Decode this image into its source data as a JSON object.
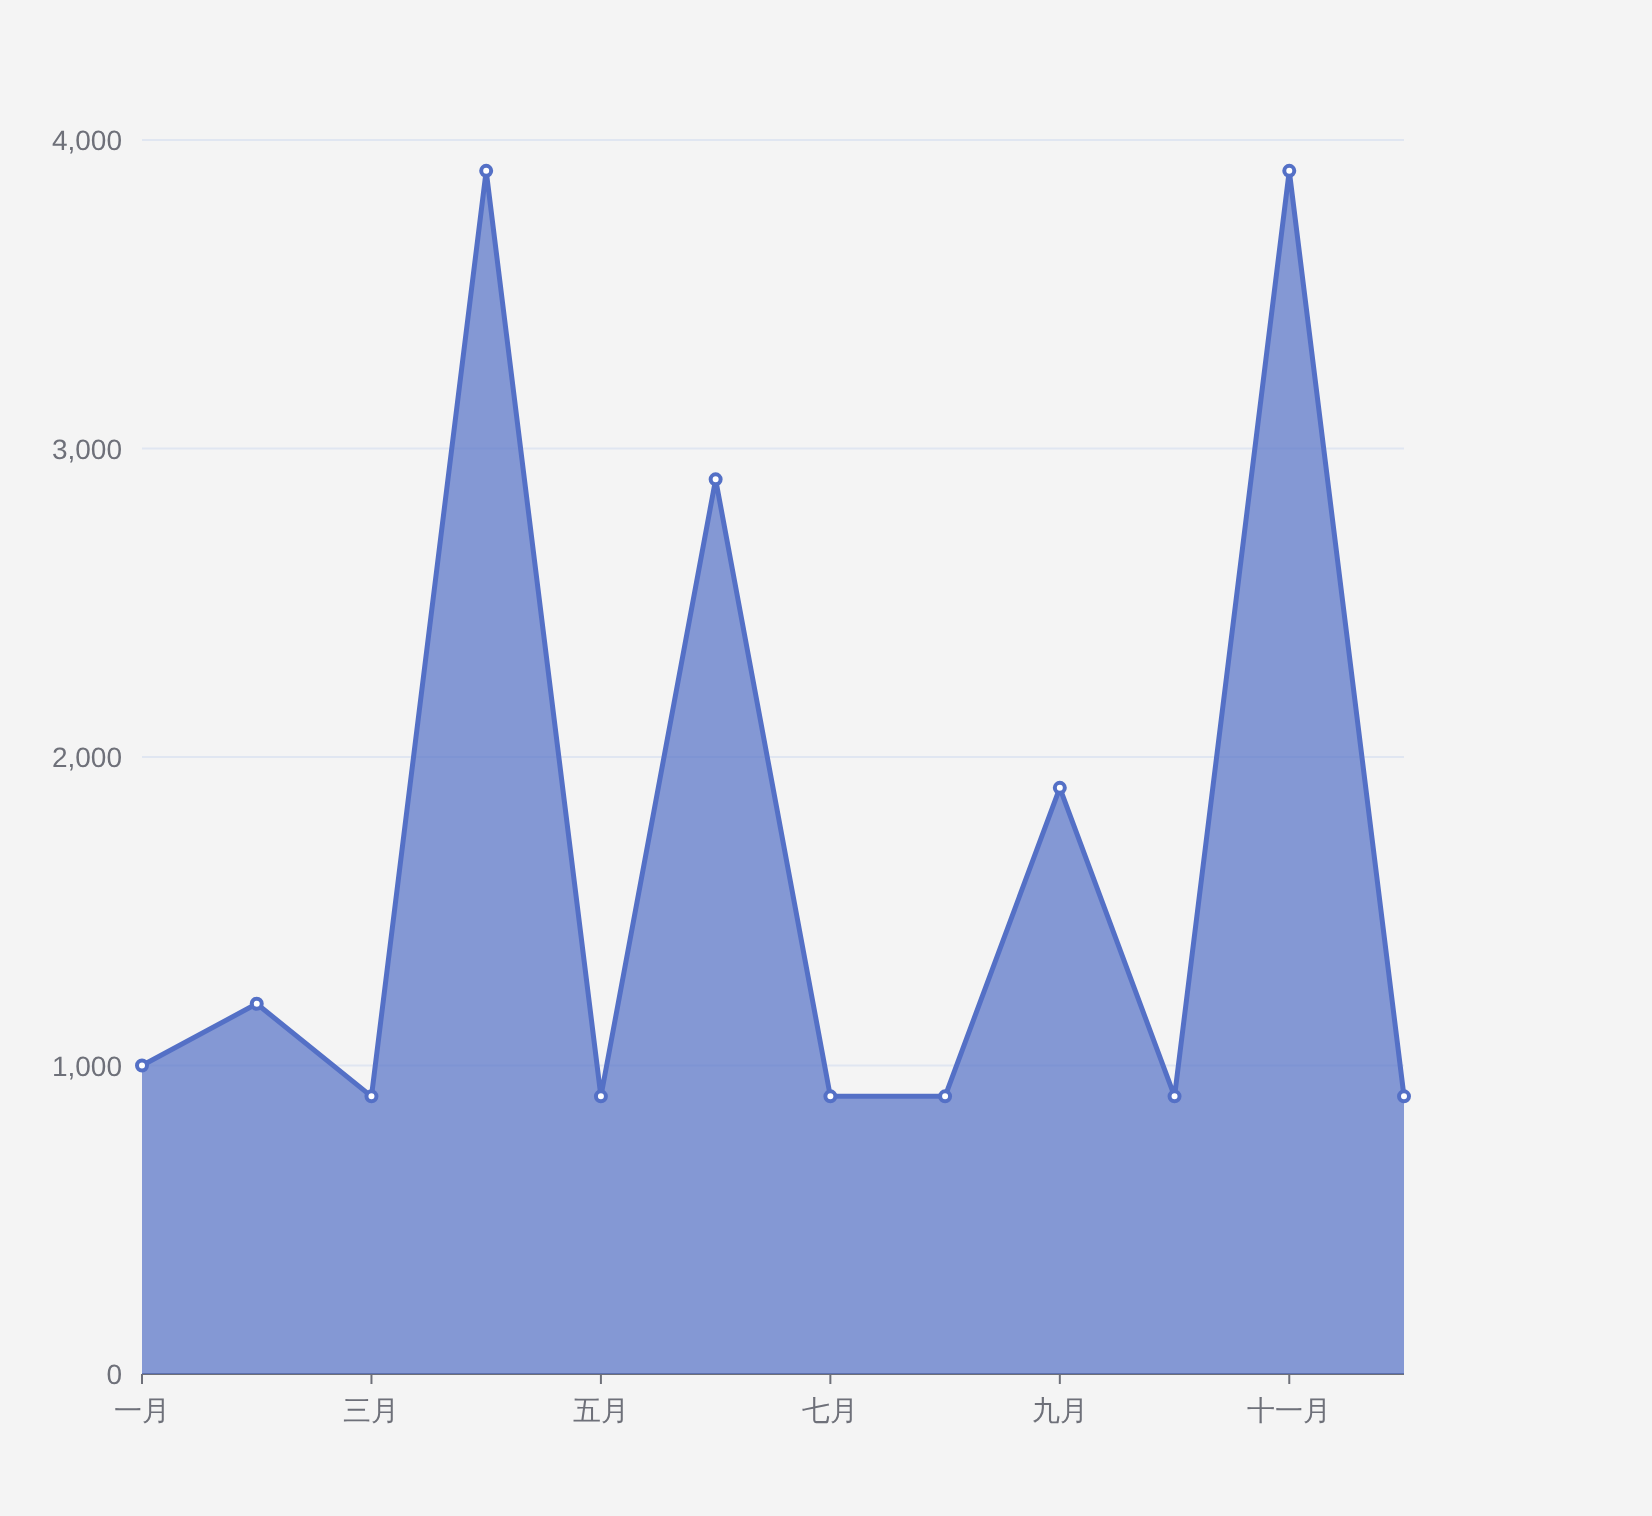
{
  "chart_data": {
    "type": "area",
    "categories": [
      "一月",
      null,
      "三月",
      null,
      "五月",
      null,
      "七月",
      null,
      "九月",
      null,
      "十一月",
      null
    ],
    "series": [
      {
        "color": "#5470c6",
        "values": [
          1000,
          1200,
          900,
          3900,
          900,
          2900,
          900,
          900,
          1900,
          900,
          3900,
          900
        ]
      }
    ],
    "ylim": [
      0,
      4000
    ],
    "yticks": [
      {
        "value": 0,
        "label": "0"
      },
      {
        "value": 1000,
        "label": "1,000"
      },
      {
        "value": 2000,
        "label": "2,000"
      },
      {
        "value": 3000,
        "label": "3,000"
      },
      {
        "value": 4000,
        "label": "4,000"
      }
    ],
    "grid": "y",
    "marker": "circle"
  }
}
